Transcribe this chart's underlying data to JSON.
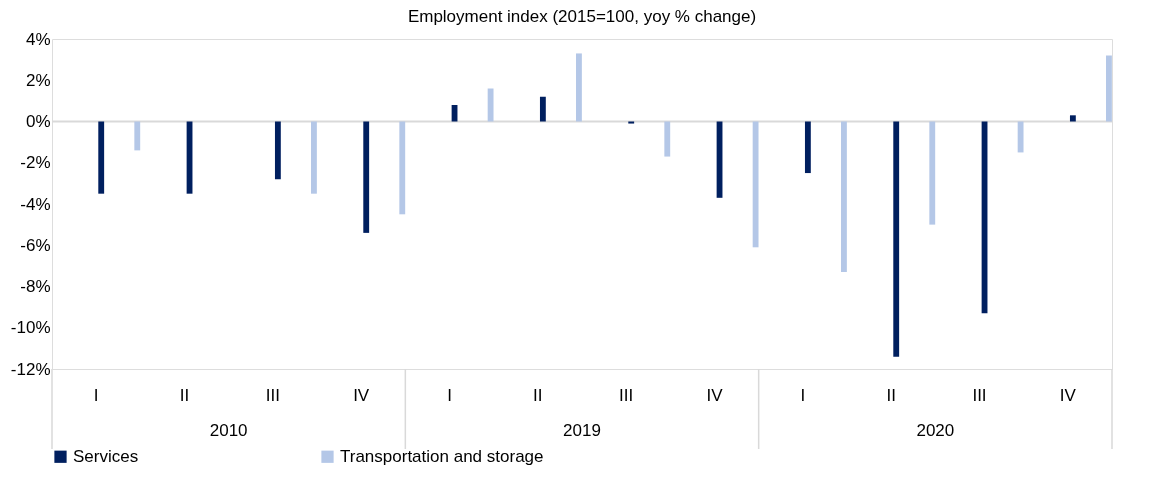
{
  "chart_data": {
    "type": "bar",
    "title": "Employment index (2015=100, yoy % change)",
    "categories": [
      "I",
      "II",
      "III",
      "IV",
      "I",
      "II",
      "III",
      "IV",
      "I",
      "II",
      "III",
      "IV"
    ],
    "annotations": [
      "2010",
      "2019",
      "2020"
    ],
    "series": [
      {
        "name": "Services",
        "color": "#001f5f",
        "values": [
          -3.5,
          -3.5,
          -2.8,
          -5.4,
          0.8,
          1.2,
          -0.1,
          -3.7,
          -2.5,
          -11.4,
          -9.3,
          0.3
        ]
      },
      {
        "name": "Transportation and storage",
        "color": "#b4c7e7",
        "values": [
          -1.4,
          null,
          -3.5,
          -4.5,
          1.6,
          3.3,
          -1.7,
          -6.1,
          -7.3,
          -5.0,
          -1.5,
          3.2
        ]
      }
    ],
    "ylim": [
      -12,
      4
    ],
    "yticks": [
      {
        "value": -12,
        "label": "-12%"
      },
      {
        "value": -10,
        "label": "-10%"
      },
      {
        "value": -8,
        "label": "-8%"
      },
      {
        "value": -6,
        "label": "-6%"
      },
      {
        "value": -4,
        "label": "-4%"
      },
      {
        "value": -2,
        "label": "-2%"
      },
      {
        "value": 0,
        "label": "0%"
      },
      {
        "value": 2,
        "label": "2%"
      },
      {
        "value": 4,
        "label": "4%"
      }
    ],
    "ref_lines": [
      {
        "axis": "y",
        "value": 0,
        "color": "#d9d9d9"
      }
    ],
    "grid": false,
    "legend": "bottom"
  }
}
